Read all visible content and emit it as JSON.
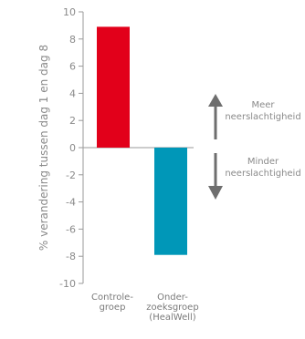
{
  "chart_data": {
    "type": "bar",
    "ylabel": "% verandering tussen dag 1 en dag 8",
    "ylim": [
      -10,
      10
    ],
    "yticks": [
      -10,
      -8,
      -6,
      -4,
      -2,
      0,
      2,
      4,
      6,
      8,
      10
    ],
    "grid": false,
    "categories": [
      [
        "Controle-",
        "groep"
      ],
      [
        "Onder-",
        "zoeksgroep",
        "(HealWell)"
      ]
    ],
    "values": [
      8.9,
      -7.9
    ],
    "colors": [
      "#e2001a",
      "#0097b8"
    ],
    "annotations": {
      "up": [
        "Meer",
        "neerslachtigheid"
      ],
      "down": [
        "Minder",
        "neerslachtigheid"
      ]
    },
    "arrow_color": "#6e6e6e"
  }
}
